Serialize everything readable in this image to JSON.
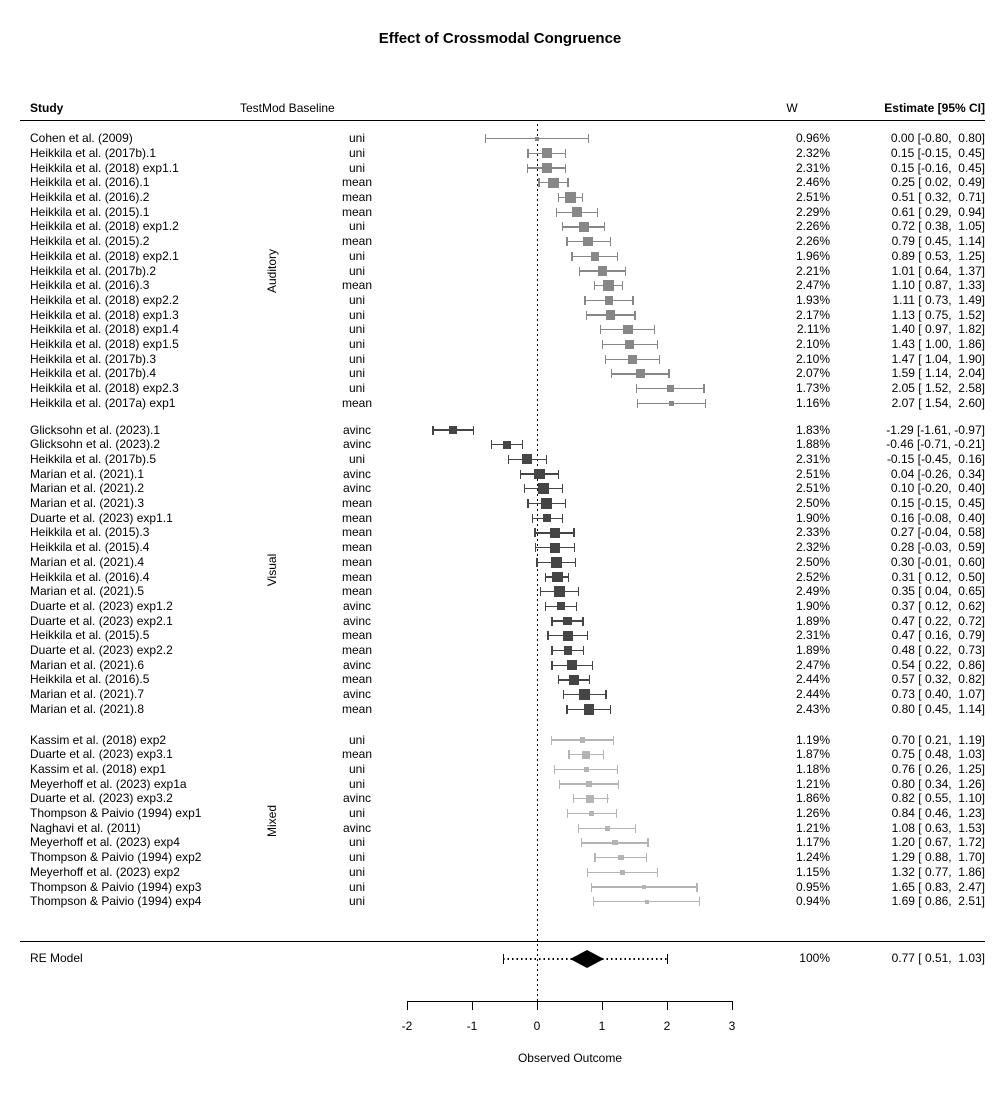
{
  "header": {
    "study": "Study",
    "testmod_baseline": "TestMod Baseline",
    "weight": "W",
    "estimate": "Estimate [95% CI]"
  },
  "axis": {
    "label": "Observed Outcome",
    "ticks": [
      -2,
      -1,
      0,
      1,
      2,
      3
    ]
  },
  "colors": {
    "auditory": "#878787",
    "visual": "#454545",
    "mixed": "#b4b4b4",
    "summary_diamond": "#000000",
    "axis": "#000000"
  },
  "chart_data": {
    "type": "forest",
    "title": "Effect of Crossmodal Congruence",
    "xlabel": "Observed Outcome",
    "xlim": [
      -2,
      3
    ],
    "zero_line": 0,
    "groups": [
      {
        "name": "Auditory",
        "key": "auditory",
        "rows": [
          {
            "study": "Cohen et al. (2009)",
            "baseline": "uni",
            "w": 0.96,
            "w_text": "0.96%",
            "est": 0.0,
            "lo": -0.8,
            "hi": 0.8,
            "est_text": "0.00 [-0.80,  0.80]"
          },
          {
            "study": "Heikkila et al. (2017b).1",
            "baseline": "uni",
            "w": 2.32,
            "w_text": "2.32%",
            "est": 0.15,
            "lo": -0.15,
            "hi": 0.45,
            "est_text": "0.15 [-0.15,  0.45]"
          },
          {
            "study": "Heikkila et al. (2018) exp1.1",
            "baseline": "uni",
            "w": 2.31,
            "w_text": "2.31%",
            "est": 0.15,
            "lo": -0.16,
            "hi": 0.45,
            "est_text": "0.15 [-0.16,  0.45]"
          },
          {
            "study": "Heikkila et al. (2016).1",
            "baseline": "mean",
            "w": 2.46,
            "w_text": "2.46%",
            "est": 0.25,
            "lo": 0.02,
            "hi": 0.49,
            "est_text": "0.25 [ 0.02,  0.49]"
          },
          {
            "study": "Heikkila et al. (2016).2",
            "baseline": "mean",
            "w": 2.51,
            "w_text": "2.51%",
            "est": 0.51,
            "lo": 0.32,
            "hi": 0.71,
            "est_text": "0.51 [ 0.32,  0.71]"
          },
          {
            "study": "Heikkila et al. (2015).1",
            "baseline": "mean",
            "w": 2.29,
            "w_text": "2.29%",
            "est": 0.61,
            "lo": 0.29,
            "hi": 0.94,
            "est_text": "0.61 [ 0.29,  0.94]"
          },
          {
            "study": "Heikkila et al. (2018) exp1.2",
            "baseline": "uni",
            "w": 2.26,
            "w_text": "2.26%",
            "est": 0.72,
            "lo": 0.38,
            "hi": 1.05,
            "est_text": "0.72 [ 0.38,  1.05]"
          },
          {
            "study": "Heikkila et al. (2015).2",
            "baseline": "mean",
            "w": 2.26,
            "w_text": "2.26%",
            "est": 0.79,
            "lo": 0.45,
            "hi": 1.14,
            "est_text": "0.79 [ 0.45,  1.14]"
          },
          {
            "study": "Heikkila et al. (2018) exp2.1",
            "baseline": "uni",
            "w": 1.96,
            "w_text": "1.96%",
            "est": 0.89,
            "lo": 0.53,
            "hi": 1.25,
            "est_text": "0.89 [ 0.53,  1.25]"
          },
          {
            "study": "Heikkila et al. (2017b).2",
            "baseline": "uni",
            "w": 2.21,
            "w_text": "2.21%",
            "est": 1.01,
            "lo": 0.64,
            "hi": 1.37,
            "est_text": "1.01 [ 0.64,  1.37]"
          },
          {
            "study": "Heikkila et al. (2016).3",
            "baseline": "mean",
            "w": 2.47,
            "w_text": "2.47%",
            "est": 1.1,
            "lo": 0.87,
            "hi": 1.33,
            "est_text": "1.10 [ 0.87,  1.33]"
          },
          {
            "study": "Heikkila et al. (2018) exp2.2",
            "baseline": "uni",
            "w": 1.93,
            "w_text": "1.93%",
            "est": 1.11,
            "lo": 0.73,
            "hi": 1.49,
            "est_text": "1.11 [ 0.73,  1.49]"
          },
          {
            "study": "Heikkila et al. (2018) exp1.3",
            "baseline": "uni",
            "w": 2.17,
            "w_text": "2.17%",
            "est": 1.13,
            "lo": 0.75,
            "hi": 1.52,
            "est_text": "1.13 [ 0.75,  1.52]"
          },
          {
            "study": "Heikkila et al. (2018) exp1.4",
            "baseline": "uni",
            "w": 2.11,
            "w_text": "2.11%",
            "est": 1.4,
            "lo": 0.97,
            "hi": 1.82,
            "est_text": "1.40 [ 0.97,  1.82]"
          },
          {
            "study": "Heikkila et al. (2018) exp1.5",
            "baseline": "uni",
            "w": 2.1,
            "w_text": "2.10%",
            "est": 1.43,
            "lo": 1.0,
            "hi": 1.86,
            "est_text": "1.43 [ 1.00,  1.86]"
          },
          {
            "study": "Heikkila et al. (2017b).3",
            "baseline": "uni",
            "w": 2.1,
            "w_text": "2.10%",
            "est": 1.47,
            "lo": 1.04,
            "hi": 1.9,
            "est_text": "1.47 [ 1.04,  1.90]"
          },
          {
            "study": "Heikkila et al. (2017b).4",
            "baseline": "uni",
            "w": 2.07,
            "w_text": "2.07%",
            "est": 1.59,
            "lo": 1.14,
            "hi": 2.04,
            "est_text": "1.59 [ 1.14,  2.04]"
          },
          {
            "study": "Heikkila et al. (2018) exp2.3",
            "baseline": "uni",
            "w": 1.73,
            "w_text": "1.73%",
            "est": 2.05,
            "lo": 1.52,
            "hi": 2.58,
            "est_text": "2.05 [ 1.52,  2.58]"
          },
          {
            "study": "Heikkila et al. (2017a) exp1",
            "baseline": "mean",
            "w": 1.16,
            "w_text": "1.16%",
            "est": 2.07,
            "lo": 1.54,
            "hi": 2.6,
            "est_text": "2.07 [ 1.54,  2.60]"
          }
        ]
      },
      {
        "name": "Visual",
        "key": "visual",
        "rows": [
          {
            "study": "Glicksohn et al. (2023).1",
            "baseline": "avinc",
            "w": 1.83,
            "w_text": "1.83%",
            "est": -1.29,
            "lo": -1.61,
            "hi": -0.97,
            "est_text": "-1.29 [-1.61, -0.97]"
          },
          {
            "study": "Glicksohn et al. (2023).2",
            "baseline": "avinc",
            "w": 1.88,
            "w_text": "1.88%",
            "est": -0.46,
            "lo": -0.71,
            "hi": -0.21,
            "est_text": "-0.46 [-0.71, -0.21]"
          },
          {
            "study": "Heikkila et al. (2017b).5",
            "baseline": "uni",
            "w": 2.31,
            "w_text": "2.31%",
            "est": -0.15,
            "lo": -0.45,
            "hi": 0.16,
            "est_text": "-0.15 [-0.45,  0.16]"
          },
          {
            "study": "Marian et al. (2021).1",
            "baseline": "avinc",
            "w": 2.51,
            "w_text": "2.51%",
            "est": 0.04,
            "lo": -0.26,
            "hi": 0.34,
            "est_text": "0.04 [-0.26,  0.34]"
          },
          {
            "study": "Marian et al. (2021).2",
            "baseline": "avinc",
            "w": 2.51,
            "w_text": "2.51%",
            "est": 0.1,
            "lo": -0.2,
            "hi": 0.4,
            "est_text": "0.10 [-0.20,  0.40]"
          },
          {
            "study": "Marian et al. (2021).3",
            "baseline": "mean",
            "w": 2.5,
            "w_text": "2.50%",
            "est": 0.15,
            "lo": -0.15,
            "hi": 0.45,
            "est_text": "0.15 [-0.15,  0.45]"
          },
          {
            "study": "Duarte et al. (2023) exp1.1",
            "baseline": "mean",
            "w": 1.9,
            "w_text": "1.90%",
            "est": 0.16,
            "lo": -0.08,
            "hi": 0.4,
            "est_text": "0.16 [-0.08,  0.40]"
          },
          {
            "study": "Heikkila et al. (2015).3",
            "baseline": "mean",
            "w": 2.33,
            "w_text": "2.33%",
            "est": 0.27,
            "lo": -0.04,
            "hi": 0.58,
            "est_text": "0.27 [-0.04,  0.58]"
          },
          {
            "study": "Heikkila et al. (2015).4",
            "baseline": "mean",
            "w": 2.32,
            "w_text": "2.32%",
            "est": 0.28,
            "lo": -0.03,
            "hi": 0.59,
            "est_text": "0.28 [-0.03,  0.59]"
          },
          {
            "study": "Marian et al. (2021).4",
            "baseline": "mean",
            "w": 2.5,
            "w_text": "2.50%",
            "est": 0.3,
            "lo": -0.01,
            "hi": 0.6,
            "est_text": "0.30 [-0.01,  0.60]"
          },
          {
            "study": "Heikkila et al. (2016).4",
            "baseline": "mean",
            "w": 2.52,
            "w_text": "2.52%",
            "est": 0.31,
            "lo": 0.12,
            "hi": 0.5,
            "est_text": "0.31 [ 0.12,  0.50]"
          },
          {
            "study": "Marian et al. (2021).5",
            "baseline": "mean",
            "w": 2.49,
            "w_text": "2.49%",
            "est": 0.35,
            "lo": 0.04,
            "hi": 0.65,
            "est_text": "0.35 [ 0.04,  0.65]"
          },
          {
            "study": "Duarte et al. (2023) exp1.2",
            "baseline": "avinc",
            "w": 1.9,
            "w_text": "1.90%",
            "est": 0.37,
            "lo": 0.12,
            "hi": 0.62,
            "est_text": "0.37 [ 0.12,  0.62]"
          },
          {
            "study": "Duarte et al. (2023) exp2.1",
            "baseline": "avinc",
            "w": 1.89,
            "w_text": "1.89%",
            "est": 0.47,
            "lo": 0.22,
            "hi": 0.72,
            "est_text": "0.47 [ 0.22,  0.72]"
          },
          {
            "study": "Heikkila et al. (2015).5",
            "baseline": "mean",
            "w": 2.31,
            "w_text": "2.31%",
            "est": 0.47,
            "lo": 0.16,
            "hi": 0.79,
            "est_text": "0.47 [ 0.16,  0.79]"
          },
          {
            "study": "Duarte et al. (2023) exp2.2",
            "baseline": "mean",
            "w": 1.89,
            "w_text": "1.89%",
            "est": 0.48,
            "lo": 0.22,
            "hi": 0.73,
            "est_text": "0.48 [ 0.22,  0.73]"
          },
          {
            "study": "Marian et al. (2021).6",
            "baseline": "avinc",
            "w": 2.47,
            "w_text": "2.47%",
            "est": 0.54,
            "lo": 0.22,
            "hi": 0.86,
            "est_text": "0.54 [ 0.22,  0.86]"
          },
          {
            "study": "Heikkila et al. (2016).5",
            "baseline": "mean",
            "w": 2.44,
            "w_text": "2.44%",
            "est": 0.57,
            "lo": 0.32,
            "hi": 0.82,
            "est_text": "0.57 [ 0.32,  0.82]"
          },
          {
            "study": "Marian et al. (2021).7",
            "baseline": "avinc",
            "w": 2.44,
            "w_text": "2.44%",
            "est": 0.73,
            "lo": 0.4,
            "hi": 1.07,
            "est_text": "0.73 [ 0.40,  1.07]"
          },
          {
            "study": "Marian et al. (2021).8",
            "baseline": "mean",
            "w": 2.43,
            "w_text": "2.43%",
            "est": 0.8,
            "lo": 0.45,
            "hi": 1.14,
            "est_text": "0.80 [ 0.45,  1.14]"
          }
        ]
      },
      {
        "name": "Mixed",
        "key": "mixed",
        "rows": [
          {
            "study": "Kassim et al. (2018) exp2",
            "baseline": "uni",
            "w": 1.19,
            "w_text": "1.19%",
            "est": 0.7,
            "lo": 0.21,
            "hi": 1.19,
            "est_text": "0.70 [ 0.21,  1.19]"
          },
          {
            "study": "Duarte et al. (2023) exp3.1",
            "baseline": "mean",
            "w": 1.87,
            "w_text": "1.87%",
            "est": 0.75,
            "lo": 0.48,
            "hi": 1.03,
            "est_text": "0.75 [ 0.48,  1.03]"
          },
          {
            "study": "Kassim et al. (2018) exp1",
            "baseline": "uni",
            "w": 1.18,
            "w_text": "1.18%",
            "est": 0.76,
            "lo": 0.26,
            "hi": 1.25,
            "est_text": "0.76 [ 0.26,  1.25]"
          },
          {
            "study": "Meyerhoff et al. (2023) exp1a",
            "baseline": "uni",
            "w": 1.21,
            "w_text": "1.21%",
            "est": 0.8,
            "lo": 0.34,
            "hi": 1.26,
            "est_text": "0.80 [ 0.34,  1.26]"
          },
          {
            "study": "Duarte et al. (2023) exp3.2",
            "baseline": "avinc",
            "w": 1.86,
            "w_text": "1.86%",
            "est": 0.82,
            "lo": 0.55,
            "hi": 1.1,
            "est_text": "0.82 [ 0.55,  1.10]"
          },
          {
            "study": "Thompson & Paivio (1994) exp1",
            "baseline": "uni",
            "w": 1.26,
            "w_text": "1.26%",
            "est": 0.84,
            "lo": 0.46,
            "hi": 1.23,
            "est_text": "0.84 [ 0.46,  1.23]"
          },
          {
            "study": "Naghavi et al. (2011)",
            "baseline": "avinc",
            "w": 1.21,
            "w_text": "1.21%",
            "est": 1.08,
            "lo": 0.63,
            "hi": 1.53,
            "est_text": "1.08 [ 0.63,  1.53]"
          },
          {
            "study": "Meyerhoff et al. (2023) exp4",
            "baseline": "uni",
            "w": 1.17,
            "w_text": "1.17%",
            "est": 1.2,
            "lo": 0.67,
            "hi": 1.72,
            "est_text": "1.20 [ 0.67,  1.72]"
          },
          {
            "study": "Thompson & Paivio (1994) exp2",
            "baseline": "uni",
            "w": 1.24,
            "w_text": "1.24%",
            "est": 1.29,
            "lo": 0.88,
            "hi": 1.7,
            "est_text": "1.29 [ 0.88,  1.70]"
          },
          {
            "study": "Meyerhoff et al. (2023) exp2",
            "baseline": "uni",
            "w": 1.15,
            "w_text": "1.15%",
            "est": 1.32,
            "lo": 0.77,
            "hi": 1.86,
            "est_text": "1.32 [ 0.77,  1.86]"
          },
          {
            "study": "Thompson & Paivio (1994) exp3",
            "baseline": "uni",
            "w": 0.95,
            "w_text": "0.95%",
            "est": 1.65,
            "lo": 0.83,
            "hi": 2.47,
            "est_text": "1.65 [ 0.83,  2.47]"
          },
          {
            "study": "Thompson & Paivio (1994) exp4",
            "baseline": "uni",
            "w": 0.94,
            "w_text": "0.94%",
            "est": 1.69,
            "lo": 0.86,
            "hi": 2.51,
            "est_text": "1.69 [ 0.86,  2.51]"
          }
        ]
      }
    ],
    "summary": {
      "label": "RE Model",
      "weight": "100%",
      "est": 0.77,
      "lo": 0.51,
      "hi": 1.03,
      "pred_lo": -0.52,
      "pred_hi": 2.02,
      "estimate_text": "0.77 [ 0.51,  1.03]"
    }
  }
}
